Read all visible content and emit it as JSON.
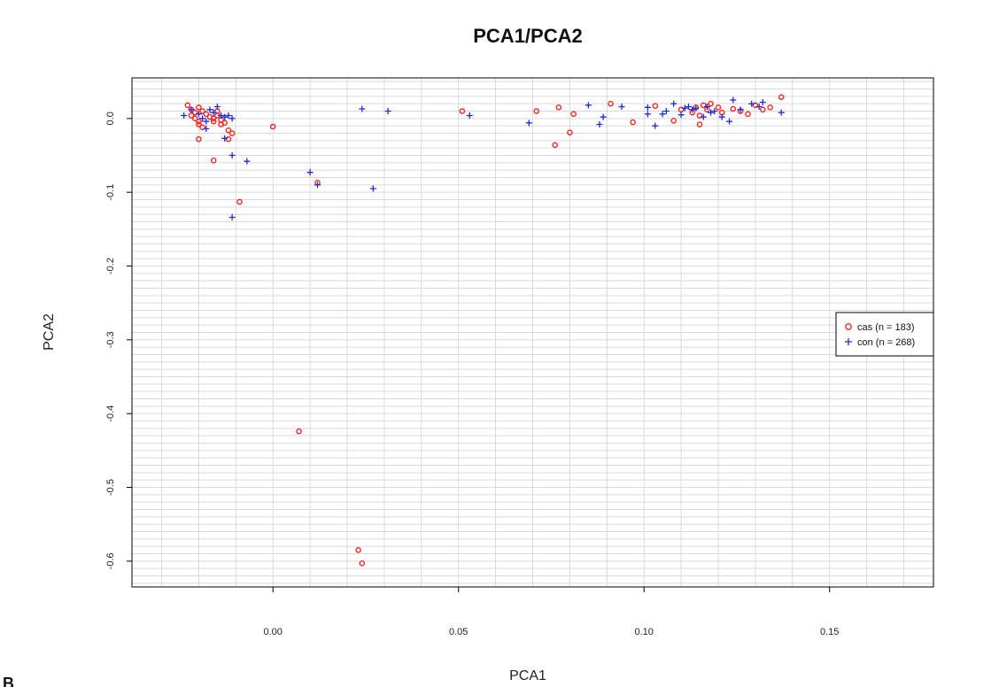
{
  "panel_letter": "B",
  "chart_data": {
    "type": "scatter",
    "title": "PCA1/PCA2",
    "xlabel": "PCA1",
    "ylabel": "PCA2",
    "xlim": [
      -0.038,
      0.178
    ],
    "ylim": [
      -0.635,
      0.055
    ],
    "x_ticks": [
      0.0,
      0.05,
      0.1,
      0.15
    ],
    "x_tick_labels": [
      "0.00",
      "0.05",
      "0.10",
      "0.15"
    ],
    "y_ticks": [
      0.0,
      -0.1,
      -0.2,
      -0.3,
      -0.4,
      -0.5,
      -0.6
    ],
    "y_tick_labels": [
      "0.0",
      "-0.1",
      "-0.2",
      "-0.3",
      "-0.4",
      "-0.5",
      "-0.6"
    ],
    "grid": true,
    "legend_position": "right",
    "series": [
      {
        "name": "cas (n = 183)",
        "marker": "circle",
        "color": "#ff2020",
        "points": [
          [
            -0.023,
            0.018
          ],
          [
            -0.022,
            0.012
          ],
          [
            -0.021,
            0.008
          ],
          [
            -0.02,
            0.015
          ],
          [
            -0.022,
            0.004
          ],
          [
            -0.021,
            0.0
          ],
          [
            -0.02,
            -0.004
          ],
          [
            -0.019,
            0.01
          ],
          [
            -0.018,
            0.006
          ],
          [
            -0.02,
            -0.008
          ],
          [
            -0.019,
            -0.012
          ],
          [
            -0.017,
            0.002
          ],
          [
            -0.016,
            -0.004
          ],
          [
            -0.015,
            0.004
          ],
          [
            -0.014,
            -0.002
          ],
          [
            -0.013,
            -0.006
          ],
          [
            -0.012,
            -0.016
          ],
          [
            -0.011,
            -0.02
          ],
          [
            -0.012,
            -0.028
          ],
          [
            -0.02,
            -0.028
          ],
          [
            -0.016,
            -0.057
          ],
          [
            -0.015,
            0.01
          ],
          [
            -0.016,
            0.0
          ],
          [
            -0.014,
            -0.008
          ],
          [
            0.0,
            -0.011
          ],
          [
            -0.009,
            -0.113
          ],
          [
            0.012,
            -0.087
          ],
          [
            0.007,
            -0.424
          ],
          [
            0.023,
            -0.585
          ],
          [
            0.024,
            -0.603
          ],
          [
            0.051,
            0.01
          ],
          [
            0.071,
            0.01
          ],
          [
            0.076,
            -0.036
          ],
          [
            0.077,
            0.015
          ],
          [
            0.08,
            -0.019
          ],
          [
            0.081,
            0.006
          ],
          [
            0.091,
            0.02
          ],
          [
            0.097,
            -0.005
          ],
          [
            0.103,
            0.017
          ],
          [
            0.108,
            -0.003
          ],
          [
            0.11,
            0.012
          ],
          [
            0.113,
            0.008
          ],
          [
            0.114,
            0.015
          ],
          [
            0.115,
            0.004
          ],
          [
            0.116,
            0.018
          ],
          [
            0.115,
            -0.008
          ],
          [
            0.117,
            0.012
          ],
          [
            0.118,
            0.02
          ],
          [
            0.12,
            0.015
          ],
          [
            0.121,
            0.008
          ],
          [
            0.124,
            0.013
          ],
          [
            0.126,
            0.01
          ],
          [
            0.128,
            0.006
          ],
          [
            0.13,
            0.018
          ],
          [
            0.132,
            0.012
          ],
          [
            0.134,
            0.015
          ],
          [
            0.137,
            0.029
          ]
        ]
      },
      {
        "name": "con (n = 268)",
        "marker": "plus",
        "color": "#1f2bd6",
        "points": [
          [
            -0.024,
            0.004
          ],
          [
            -0.022,
            0.012
          ],
          [
            -0.02,
            0.006
          ],
          [
            -0.019,
            0.0
          ],
          [
            -0.018,
            -0.004
          ],
          [
            -0.017,
            0.012
          ],
          [
            -0.016,
            0.008
          ],
          [
            -0.015,
            0.016
          ],
          [
            -0.014,
            0.004
          ],
          [
            -0.013,
            0.002
          ],
          [
            -0.012,
            0.004
          ],
          [
            -0.011,
            0.0
          ],
          [
            -0.013,
            -0.027
          ],
          [
            -0.018,
            -0.014
          ],
          [
            -0.011,
            -0.05
          ],
          [
            -0.007,
            -0.058
          ],
          [
            -0.011,
            -0.134
          ],
          [
            0.01,
            -0.073
          ],
          [
            0.012,
            -0.09
          ],
          [
            0.024,
            0.013
          ],
          [
            0.027,
            -0.095
          ],
          [
            0.031,
            0.01
          ],
          [
            0.053,
            0.004
          ],
          [
            0.069,
            -0.006
          ],
          [
            0.085,
            0.018
          ],
          [
            0.088,
            -0.008
          ],
          [
            0.089,
            0.002
          ],
          [
            0.094,
            0.016
          ],
          [
            0.101,
            0.015
          ],
          [
            0.101,
            0.006
          ],
          [
            0.103,
            -0.01
          ],
          [
            0.105,
            0.006
          ],
          [
            0.106,
            0.01
          ],
          [
            0.108,
            0.02
          ],
          [
            0.11,
            0.005
          ],
          [
            0.111,
            0.014
          ],
          [
            0.112,
            0.016
          ],
          [
            0.113,
            0.012
          ],
          [
            0.114,
            0.014
          ],
          [
            0.116,
            0.002
          ],
          [
            0.117,
            0.016
          ],
          [
            0.118,
            0.008
          ],
          [
            0.119,
            0.01
          ],
          [
            0.121,
            0.002
          ],
          [
            0.123,
            -0.004
          ],
          [
            0.124,
            0.025
          ],
          [
            0.126,
            0.012
          ],
          [
            0.129,
            0.02
          ],
          [
            0.131,
            0.016
          ],
          [
            0.132,
            0.022
          ],
          [
            0.137,
            0.008
          ]
        ]
      }
    ]
  }
}
